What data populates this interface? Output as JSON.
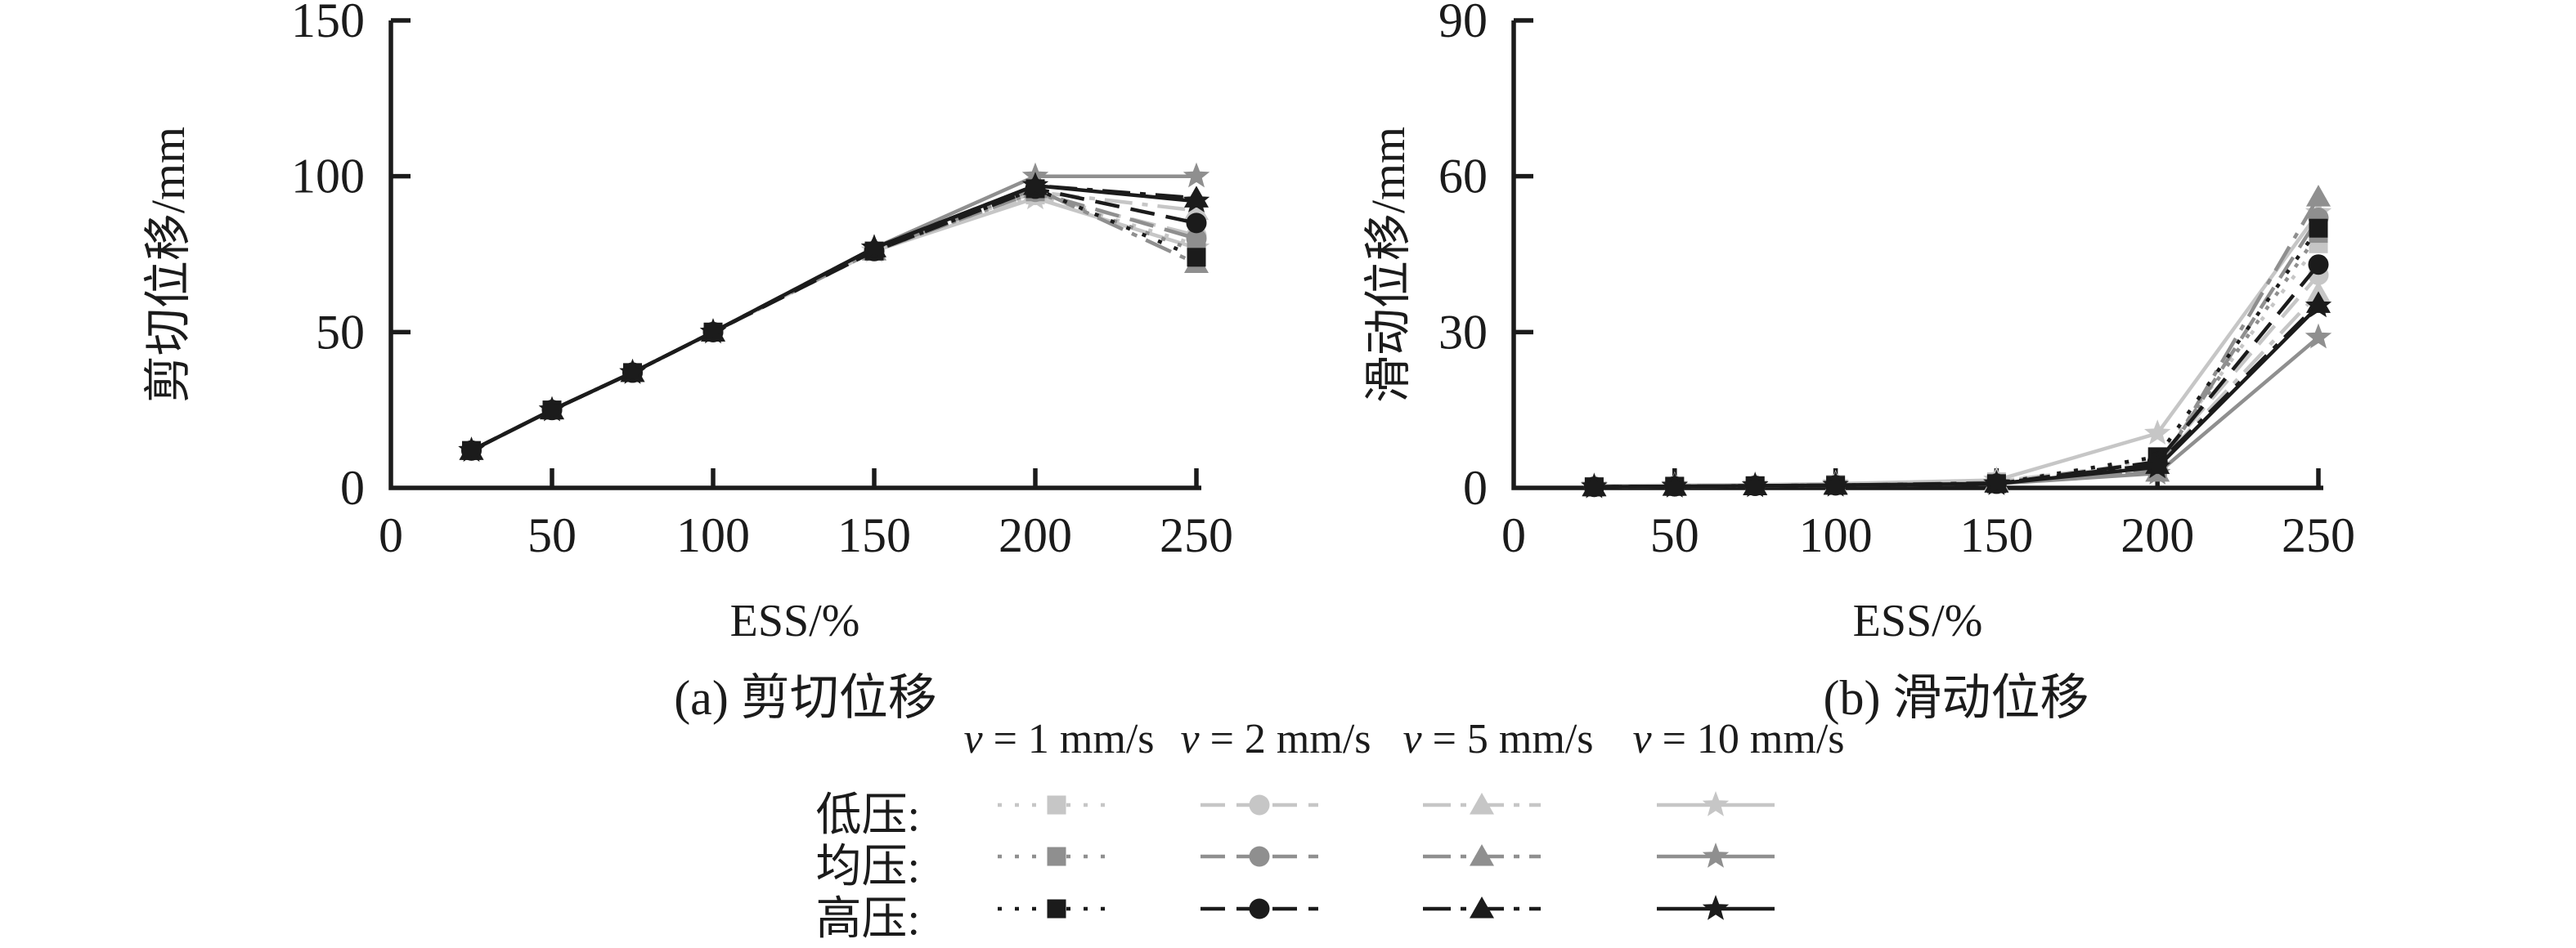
{
  "legend": {
    "headers": [
      "v = 1 mm/s",
      "v = 2 mm/s",
      "v = 5 mm/s",
      "v = 10 mm/s"
    ],
    "rows": [
      {
        "label": "低压:",
        "color": "#c6c6c6"
      },
      {
        "label": "均压:",
        "color": "#8f8f8f"
      },
      {
        "label": "高压:",
        "color": "#1b1b1b"
      }
    ],
    "styles": [
      {
        "velocity": "v = 1 mm/s",
        "marker": "square-marker",
        "dash": "5 16"
      },
      {
        "velocity": "v = 2 mm/s",
        "marker": "circle-marker",
        "dash": "30 14"
      },
      {
        "velocity": "v = 5 mm/s",
        "marker": "triangle-marker",
        "dash": "34 12 7 12"
      },
      {
        "velocity": "v = 10 mm/s",
        "marker": "star-marker",
        "dash": ""
      }
    ]
  },
  "chart_data": [
    {
      "type": "line",
      "title": "(a) 剪切位移",
      "xlabel": "ESS/%",
      "ylabel": "剪切位移/mm",
      "xlim": [
        0,
        250
      ],
      "ylim": [
        0,
        150
      ],
      "xticks": [
        0,
        50,
        100,
        150,
        200,
        250
      ],
      "yticks": [
        0,
        50,
        100,
        150
      ],
      "grid": false,
      "x": [
        25,
        50,
        75,
        100,
        150,
        200,
        250
      ],
      "series": [
        {
          "name": "低压 v = 1 mm/s",
          "group": 0,
          "style": 0,
          "values": [
            12,
            25,
            37,
            50,
            76,
            94,
            78
          ]
        },
        {
          "name": "低压 v = 2 mm/s",
          "group": 0,
          "style": 1,
          "values": [
            12,
            25,
            37,
            50,
            76,
            94,
            81
          ]
        },
        {
          "name": "低压 v = 5 mm/s",
          "group": 0,
          "style": 2,
          "values": [
            12,
            25,
            37,
            50,
            76,
            95,
            89
          ]
        },
        {
          "name": "低压 v = 10 mm/s",
          "group": 0,
          "style": 3,
          "values": [
            12,
            25,
            37,
            50,
            76,
            93,
            77
          ]
        },
        {
          "name": "均压 v = 1 mm/s",
          "group": 1,
          "style": 0,
          "values": [
            12,
            25,
            37,
            50,
            76,
            95,
            76
          ]
        },
        {
          "name": "均压 v = 2 mm/s",
          "group": 1,
          "style": 1,
          "values": [
            12,
            25,
            37,
            50,
            76,
            95,
            80
          ]
        },
        {
          "name": "均压 v = 5 mm/s",
          "group": 1,
          "style": 2,
          "values": [
            12,
            25,
            37,
            50,
            76,
            96,
            72
          ]
        },
        {
          "name": "均压 v = 10 mm/s",
          "group": 1,
          "style": 3,
          "values": [
            12,
            25,
            37,
            50,
            77,
            100,
            100
          ]
        },
        {
          "name": "高压 v = 1 mm/s",
          "group": 2,
          "style": 0,
          "values": [
            12,
            25,
            37,
            50,
            76,
            96,
            74
          ]
        },
        {
          "name": "高压 v = 2 mm/s",
          "group": 2,
          "style": 1,
          "values": [
            12,
            25,
            37,
            50,
            76,
            96,
            85
          ]
        },
        {
          "name": "高压 v = 5 mm/s",
          "group": 2,
          "style": 2,
          "values": [
            12,
            25,
            37,
            50,
            77,
            97,
            93
          ]
        },
        {
          "name": "高压 v = 10 mm/s",
          "group": 2,
          "style": 3,
          "values": [
            12,
            25,
            37,
            50,
            77,
            97,
            92
          ]
        }
      ]
    },
    {
      "type": "line",
      "title": "(b) 滑动位移",
      "xlabel": "ESS/%",
      "ylabel": "滑动位移/mm",
      "xlim": [
        0,
        250
      ],
      "ylim": [
        0,
        90
      ],
      "xticks": [
        0,
        50,
        100,
        150,
        200,
        250
      ],
      "yticks": [
        0,
        30,
        60,
        90
      ],
      "grid": false,
      "x": [
        25,
        50,
        75,
        100,
        150,
        200,
        250
      ],
      "series": [
        {
          "name": "低压 v = 1 mm/s",
          "group": 0,
          "style": 0,
          "values": [
            0.3,
            0.4,
            0.5,
            0.7,
            1.2,
            5.5,
            47
          ]
        },
        {
          "name": "低压 v = 2 mm/s",
          "group": 0,
          "style": 1,
          "values": [
            0.3,
            0.4,
            0.5,
            0.7,
            1.2,
            5,
            41
          ]
        },
        {
          "name": "低压 v = 5 mm/s",
          "group": 0,
          "style": 2,
          "values": [
            0.3,
            0.4,
            0.5,
            0.7,
            1.3,
            4.5,
            37.5
          ]
        },
        {
          "name": "低压 v = 10 mm/s",
          "group": 0,
          "style": 3,
          "values": [
            0.4,
            0.5,
            0.6,
            0.8,
            1.5,
            10.5,
            53
          ]
        },
        {
          "name": "均压 v = 1 mm/s",
          "group": 1,
          "style": 0,
          "values": [
            0.2,
            0.3,
            0.4,
            0.5,
            0.9,
            4,
            49
          ]
        },
        {
          "name": "均压 v = 2 mm/s",
          "group": 1,
          "style": 1,
          "values": [
            0.2,
            0.3,
            0.4,
            0.5,
            0.9,
            3.5,
            52
          ]
        },
        {
          "name": "均压 v = 5 mm/s",
          "group": 1,
          "style": 2,
          "values": [
            0.2,
            0.3,
            0.4,
            0.5,
            1.0,
            3,
            56
          ]
        },
        {
          "name": "均压 v = 10 mm/s",
          "group": 1,
          "style": 3,
          "values": [
            0.2,
            0.3,
            0.4,
            0.5,
            0.8,
            2.8,
            29
          ]
        },
        {
          "name": "高压 v = 1 mm/s",
          "group": 2,
          "style": 0,
          "values": [
            0.2,
            0.3,
            0.4,
            0.5,
            0.8,
            6,
            50
          ]
        },
        {
          "name": "高压 v = 2 mm/s",
          "group": 2,
          "style": 1,
          "values": [
            0.2,
            0.3,
            0.4,
            0.5,
            0.8,
            5,
            43
          ]
        },
        {
          "name": "高压 v = 5 mm/s",
          "group": 2,
          "style": 2,
          "values": [
            0.2,
            0.3,
            0.4,
            0.5,
            0.9,
            4.5,
            35.5
          ]
        },
        {
          "name": "高压 v = 10 mm/s",
          "group": 2,
          "style": 3,
          "values": [
            0.2,
            0.3,
            0.4,
            0.5,
            0.8,
            4,
            35
          ]
        }
      ]
    }
  ]
}
